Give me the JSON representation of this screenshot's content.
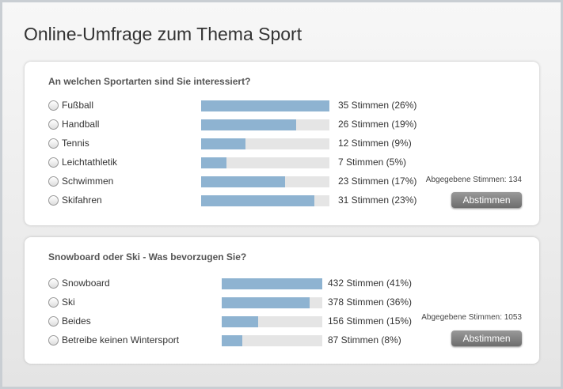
{
  "header": {
    "title": "Online-Umfrage zum Thema Sport"
  },
  "polls": [
    {
      "question": "An welchen Sportarten sind Sie interessiert?",
      "options": [
        {
          "label": "Fußball",
          "votes": 35,
          "value_label": "35 Stimmen (26%)"
        },
        {
          "label": "Handball",
          "votes": 26,
          "value_label": "26 Stimmen (19%)"
        },
        {
          "label": "Tennis",
          "votes": 12,
          "value_label": "12 Stimmen (9%)"
        },
        {
          "label": "Leichtathletik",
          "votes": 7,
          "value_label": "7 Stimmen (5%)"
        },
        {
          "label": "Schwimmen",
          "votes": 23,
          "value_label": "23 Stimmen (17%)"
        },
        {
          "label": "Skifahren",
          "votes": 31,
          "value_label": "31 Stimmen (23%)"
        }
      ],
      "total": "Abgegebene Stimmen: 134",
      "button": "Abstimmen"
    },
    {
      "question": "Snowboard oder Ski - Was bevorzugen Sie?",
      "options": [
        {
          "label": "Snowboard",
          "votes": 432,
          "value_label": "432 Stimmen (41%)"
        },
        {
          "label": "Ski",
          "votes": 378,
          "value_label": "378 Stimmen (36%)"
        },
        {
          "label": "Beides",
          "votes": 156,
          "value_label": "156 Stimmen (15%)"
        },
        {
          "label": "Betreibe keinen Wintersport",
          "votes": 87,
          "value_label": "87 Stimmen (8%)"
        }
      ],
      "total": "Abgegebene Stimmen: 1053",
      "button": "Abstimmen"
    }
  ]
}
